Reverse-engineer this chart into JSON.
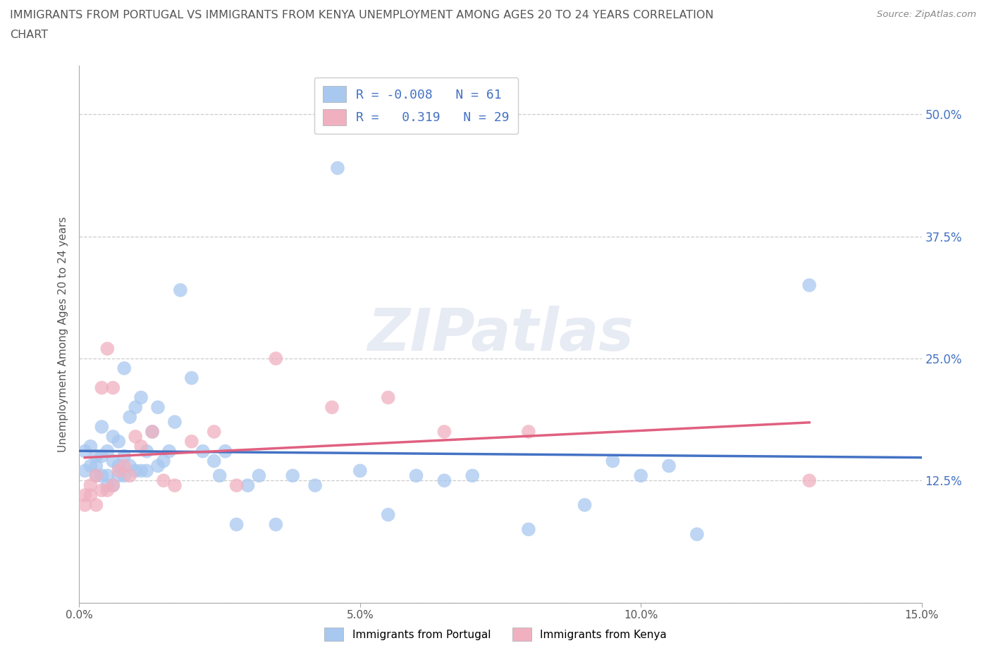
{
  "title_line1": "IMMIGRANTS FROM PORTUGAL VS IMMIGRANTS FROM KENYA UNEMPLOYMENT AMONG AGES 20 TO 24 YEARS CORRELATION",
  "title_line2": "CHART",
  "source": "Source: ZipAtlas.com",
  "ylabel": "Unemployment Among Ages 20 to 24 years",
  "xlim": [
    0.0,
    0.15
  ],
  "ylim": [
    0.0,
    0.55
  ],
  "yticks": [
    0.0,
    0.125,
    0.25,
    0.375,
    0.5
  ],
  "ytick_labels_left": [
    "",
    "",
    "",
    "",
    ""
  ],
  "ytick_labels_right": [
    "",
    "12.5%",
    "25.0%",
    "37.5%",
    "50.0%"
  ],
  "xticks": [
    0.0,
    0.05,
    0.1,
    0.15
  ],
  "xtick_labels": [
    "0.0%",
    "5.0%",
    "10.0%",
    "15.0%"
  ],
  "grid_color": "#cccccc",
  "background_color": "#ffffff",
  "watermark": "ZIPatlas",
  "portugal_color": "#a8c8f0",
  "kenya_color": "#f0b0c0",
  "portugal_line_color": "#4472c4",
  "kenya_line_color": "#e06080",
  "legend_portugal_label": "R = -0.008   N = 61",
  "legend_kenya_label": "R =   0.319   N = 29",
  "portugal_x": [
    0.001,
    0.001,
    0.002,
    0.002,
    0.003,
    0.003,
    0.003,
    0.004,
    0.004,
    0.004,
    0.005,
    0.005,
    0.005,
    0.006,
    0.006,
    0.006,
    0.007,
    0.007,
    0.007,
    0.008,
    0.008,
    0.008,
    0.009,
    0.009,
    0.01,
    0.01,
    0.011,
    0.011,
    0.012,
    0.012,
    0.013,
    0.014,
    0.014,
    0.015,
    0.016,
    0.017,
    0.018,
    0.02,
    0.022,
    0.024,
    0.025,
    0.026,
    0.028,
    0.03,
    0.032,
    0.035,
    0.038,
    0.042,
    0.046,
    0.05,
    0.055,
    0.06,
    0.065,
    0.07,
    0.08,
    0.09,
    0.095,
    0.1,
    0.105,
    0.11,
    0.13
  ],
  "portugal_y": [
    0.135,
    0.155,
    0.14,
    0.16,
    0.13,
    0.14,
    0.15,
    0.13,
    0.15,
    0.18,
    0.12,
    0.13,
    0.155,
    0.12,
    0.145,
    0.17,
    0.13,
    0.14,
    0.165,
    0.13,
    0.15,
    0.24,
    0.14,
    0.19,
    0.135,
    0.2,
    0.135,
    0.21,
    0.135,
    0.155,
    0.175,
    0.14,
    0.2,
    0.145,
    0.155,
    0.185,
    0.32,
    0.23,
    0.155,
    0.145,
    0.13,
    0.155,
    0.08,
    0.12,
    0.13,
    0.08,
    0.13,
    0.12,
    0.445,
    0.135,
    0.09,
    0.13,
    0.125,
    0.13,
    0.075,
    0.1,
    0.145,
    0.13,
    0.14,
    0.07,
    0.325
  ],
  "kenya_x": [
    0.001,
    0.001,
    0.002,
    0.002,
    0.003,
    0.003,
    0.004,
    0.004,
    0.005,
    0.005,
    0.006,
    0.006,
    0.007,
    0.008,
    0.009,
    0.01,
    0.011,
    0.013,
    0.015,
    0.017,
    0.02,
    0.024,
    0.028,
    0.035,
    0.045,
    0.055,
    0.065,
    0.08,
    0.13
  ],
  "kenya_y": [
    0.1,
    0.11,
    0.11,
    0.12,
    0.1,
    0.13,
    0.115,
    0.22,
    0.115,
    0.26,
    0.12,
    0.22,
    0.135,
    0.14,
    0.13,
    0.17,
    0.16,
    0.175,
    0.125,
    0.12,
    0.165,
    0.175,
    0.12,
    0.25,
    0.2,
    0.21,
    0.175,
    0.175,
    0.125
  ]
}
